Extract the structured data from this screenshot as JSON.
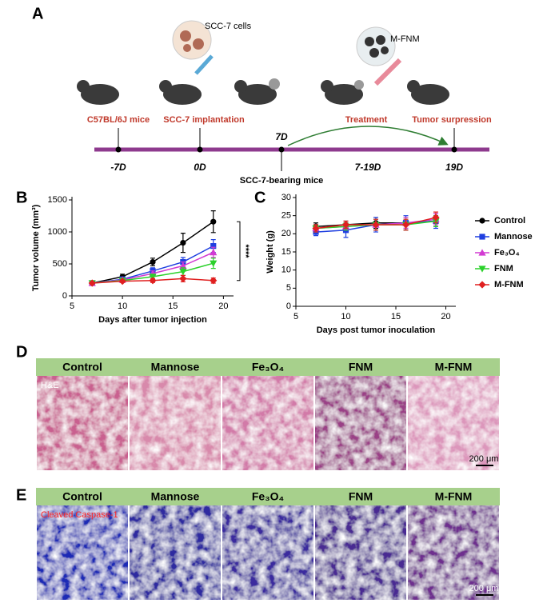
{
  "panel_a": {
    "label": "A",
    "cells_label": "SCC-7 cells",
    "drug_label": "M-FNM",
    "stages": [
      "C57BL/6J mice",
      "SCC-7 implantation",
      "Treatment",
      "Tumor surpression"
    ],
    "times": [
      "-7D",
      "0D",
      "7D",
      "7-19D",
      "19D"
    ],
    "bearing_label": "SCC-7-bearing mice"
  },
  "chart_data": [
    {
      "type": "line",
      "panel": "B",
      "xlabel": "Days after tumor injection",
      "ylabel": "Tumor volume (mm³)",
      "x": [
        7,
        10,
        13,
        16,
        19
      ],
      "xlim": [
        5,
        21
      ],
      "xticks": [
        5,
        10,
        15,
        20
      ],
      "ylim": [
        0,
        1500
      ],
      "yticks": [
        0,
        500,
        1000,
        1500
      ],
      "annotation": "****",
      "series": [
        {
          "name": "Control",
          "color": "#000000",
          "marker": "circle",
          "values": [
            200,
            300,
            530,
            830,
            1160
          ],
          "errors": [
            20,
            40,
            60,
            150,
            170
          ]
        },
        {
          "name": "Mannose",
          "color": "#1f3fe0",
          "marker": "square",
          "values": [
            200,
            260,
            390,
            530,
            780
          ],
          "errors": [
            15,
            30,
            50,
            70,
            100
          ]
        },
        {
          "name": "Fe₃O₄",
          "color": "#d23bd2",
          "marker": "triangle",
          "values": [
            200,
            250,
            350,
            470,
            680
          ],
          "errors": [
            15,
            30,
            40,
            60,
            80
          ]
        },
        {
          "name": "FNM",
          "color": "#2bd12b",
          "marker": "triangle-down",
          "values": [
            200,
            240,
            300,
            380,
            510
          ],
          "errors": [
            15,
            25,
            40,
            60,
            80
          ]
        },
        {
          "name": "M-FNM",
          "color": "#e02020",
          "marker": "diamond",
          "values": [
            200,
            230,
            240,
            270,
            240
          ],
          "errors": [
            15,
            20,
            30,
            50,
            40
          ]
        }
      ]
    },
    {
      "type": "line",
      "panel": "C",
      "xlabel": "Days post tumor inoculation",
      "ylabel": "Weight (g)",
      "x": [
        7,
        10,
        13,
        16,
        19
      ],
      "xlim": [
        5,
        21
      ],
      "xticks": [
        5,
        10,
        15,
        20
      ],
      "ylim": [
        0,
        30
      ],
      "yticks": [
        0,
        5,
        10,
        15,
        20,
        25,
        30
      ],
      "legend": "right",
      "series": [
        {
          "name": "Control",
          "color": "#000000",
          "marker": "circle",
          "values": [
            22,
            22.5,
            23,
            23,
            23.5
          ],
          "errors": [
            1,
            1,
            1.5,
            1.5,
            1.5
          ]
        },
        {
          "name": "Mannose",
          "color": "#1f3fe0",
          "marker": "square",
          "values": [
            20.5,
            21,
            22.5,
            23,
            23.5
          ],
          "errors": [
            1,
            2,
            2,
            2,
            2
          ]
        },
        {
          "name": "Fe₃O₄",
          "color": "#d23bd2",
          "marker": "triangle",
          "values": [
            21.5,
            22,
            22.5,
            23,
            24
          ],
          "errors": [
            1,
            1,
            1.5,
            1.5,
            1.5
          ]
        },
        {
          "name": "FNM",
          "color": "#2bd12b",
          "marker": "triangle-down",
          "values": [
            21.5,
            22,
            22.5,
            22.5,
            23.5
          ],
          "errors": [
            1,
            1,
            1.5,
            1.5,
            1.5
          ]
        },
        {
          "name": "M-FNM",
          "color": "#e02020",
          "marker": "diamond",
          "values": [
            21.5,
            22.5,
            22.5,
            22.5,
            24.5
          ],
          "errors": [
            1,
            1,
            1.5,
            1.5,
            1.5
          ]
        }
      ]
    }
  ],
  "panel_d": {
    "label": "D",
    "headers": [
      "Control",
      "Mannose",
      "Fe₃O₄",
      "FNM",
      "M-FNM"
    ],
    "stain": "H&E",
    "scale_bar": "200 μm"
  },
  "panel_e": {
    "label": "E",
    "headers": [
      "Control",
      "Mannose",
      "Fe₃O₄",
      "FNM",
      "M-FNM"
    ],
    "stain": "Cleaved Caspase-1",
    "scale_bar": "200 μm"
  }
}
